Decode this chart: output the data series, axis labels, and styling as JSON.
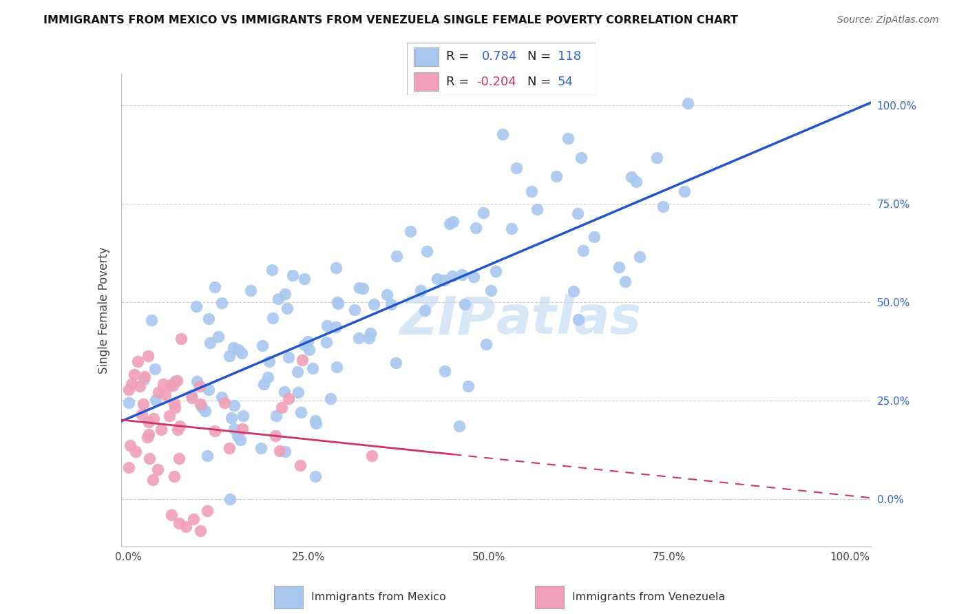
{
  "title": "IMMIGRANTS FROM MEXICO VS IMMIGRANTS FROM VENEZUELA SINGLE FEMALE POVERTY CORRELATION CHART",
  "source": "Source: ZipAtlas.com",
  "ylabel": "Single Female Poverty",
  "mexico_R": 0.784,
  "mexico_N": 118,
  "venezuela_R": -0.204,
  "venezuela_N": 54,
  "mexico_color": "#a8c8f0",
  "mexico_line_color": "#2255cc",
  "venezuela_color": "#f0a0b8",
  "venezuela_line_color": "#cc3366",
  "right_axis_color": "#3366cc",
  "watermark_color": "#c8ddf5",
  "xticks": [
    0.0,
    0.25,
    0.5,
    0.75,
    1.0
  ],
  "xtick_labels": [
    "0.0%",
    "25.0%",
    "50.0%",
    "75.0%",
    "100.0%"
  ],
  "yticks": [
    0.0,
    0.25,
    0.5,
    0.75,
    1.0
  ],
  "ytick_labels": [
    "0.0%",
    "25.0%",
    "50.0%",
    "75.0%",
    "100.0%"
  ],
  "xlim": [
    -0.01,
    1.03
  ],
  "ylim": [
    -0.12,
    1.08
  ],
  "legend_R_color": "#222222",
  "legend_val_color": "#3366cc",
  "legend_neg_val_color": "#cc3366"
}
